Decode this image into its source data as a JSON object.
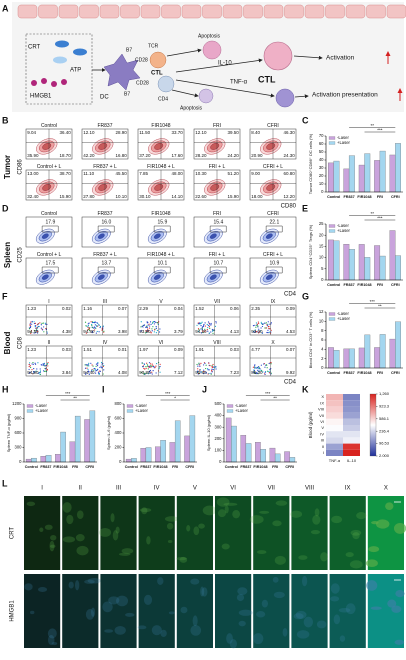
{
  "panel_labels": [
    "A",
    "B",
    "C",
    "D",
    "E",
    "F",
    "G",
    "H",
    "I",
    "J",
    "K",
    "L"
  ],
  "schematic": {
    "texts": [
      "CRT",
      "ATP",
      "HMGB1",
      "DC",
      "B7",
      "TCR",
      "CD28",
      "CTL",
      "CD28",
      "B7",
      "CD4",
      "Apoptosis",
      "IL-10",
      "TNF-α",
      "Apoptosis",
      "CTL",
      "Activation",
      "Activation presentation"
    ]
  },
  "tumor_flow": {
    "side": "Tumor",
    "y_axis": "CD86",
    "x_axis": "CD80",
    "plots": [
      {
        "name": "Control",
        "quadrants": [
          "9.04",
          "36.40",
          "35.90",
          "18.70"
        ]
      },
      {
        "name": "FR837",
        "quadrants": [
          "12.10",
          "28.90",
          "42.20",
          "16.80"
        ]
      },
      {
        "name": "FIR1048",
        "quadrants": [
          "11.50",
          "33.70",
          "37.20",
          "17.60"
        ]
      },
      {
        "name": "FRI",
        "quadrants": [
          "12.10",
          "39.50",
          "28.20",
          "24.20"
        ]
      },
      {
        "name": "CFRI",
        "quadrants": [
          "8.40",
          "46.30",
          "20.90",
          "24.30"
        ]
      },
      {
        "name": "Control + L",
        "quadrants": [
          "13.00",
          "38.70",
          "32.40",
          "15.90"
        ]
      },
      {
        "name": "FR837 + L",
        "quadrants": [
          "11.10",
          "45.50",
          "27.80",
          "10.10"
        ]
      },
      {
        "name": "FIR1048 + L",
        "quadrants": [
          "7.85",
          "48.00",
          "30.10",
          "14.10"
        ]
      },
      {
        "name": "FRI + L",
        "quadrants": [
          "10.30",
          "51.20",
          "22.60",
          "15.90"
        ]
      },
      {
        "name": "CFRI + L",
        "quadrants": [
          "9.00",
          "60.80",
          "18.00",
          "12.20"
        ]
      }
    ]
  },
  "spleen_flow": {
    "side": "Spleen",
    "y_axis": "CD25",
    "x_axis": "CD4",
    "plots": [
      {
        "name": "Control",
        "value": "17.9"
      },
      {
        "name": "FR837",
        "value": "16.0"
      },
      {
        "name": "FIR1048",
        "value": "15.9"
      },
      {
        "name": "FRI",
        "value": "15.4"
      },
      {
        "name": "CFRI",
        "value": "22.1"
      },
      {
        "name": "Control + L",
        "value": "17.5"
      },
      {
        "name": "FR837 + L",
        "value": "13.7"
      },
      {
        "name": "FIR1048 + L",
        "value": "10.1"
      },
      {
        "name": "FRI + L",
        "value": "10.7"
      },
      {
        "name": "CFRI + L",
        "value": "10.9"
      }
    ]
  },
  "blood_flow": {
    "side": "Blood",
    "y_axis": "CD8",
    "x_axis": "CD4",
    "plots": [
      {
        "name": "I",
        "quadrants": [
          "1.23",
          "0.02",
          "94.30",
          "4.38"
        ]
      },
      {
        "name": "III",
        "quadrants": [
          "1.16",
          "0.07",
          "94.80",
          "3.98"
        ]
      },
      {
        "name": "V",
        "quadrants": [
          "2.29",
          "0.04",
          "93.90",
          "3.79"
        ]
      },
      {
        "name": "VII",
        "quadrants": [
          "1.52",
          "0.06",
          "94.30",
          "4.13"
        ]
      },
      {
        "name": "IX",
        "quadrants": [
          "2.35",
          "0.09",
          "93.00",
          "4.53"
        ]
      },
      {
        "name": "II",
        "quadrants": [
          "1.23",
          "0.03",
          "94.90",
          "3.84"
        ]
      },
      {
        "name": "IV",
        "quadrants": [
          "1.51",
          "0.01",
          "94.40",
          "4.08"
        ]
      },
      {
        "name": "VI",
        "quadrants": [
          "1.97",
          "0.09",
          "90.80",
          "7.12"
        ]
      },
      {
        "name": "VIII",
        "quadrants": [
          "1.91",
          "0.03",
          "90.80",
          "7.23"
        ]
      },
      {
        "name": "X",
        "quadrants": [
          "4.77",
          "0.07",
          "85.30",
          "9.92"
        ]
      }
    ]
  },
  "chart_data": [
    {
      "type": "bar",
      "ylabel": "Tumor CD80⁺CD86⁺ DC cells (%)",
      "categories": [
        "Control",
        "FR837",
        "FIR1048",
        "FRI",
        "CFRI"
      ],
      "series": [
        {
          "name": "-Laser",
          "color": "#c9a3dc",
          "values": [
            36.4,
            28.9,
            33.7,
            39.5,
            46.3
          ]
        },
        {
          "name": "+Laser",
          "color": "#a3d6ef",
          "values": [
            38.7,
            45.5,
            48.0,
            51.2,
            60.8
          ]
        }
      ],
      "ylim": [
        0,
        70
      ],
      "yticks": [
        0,
        10,
        20,
        30,
        40,
        50,
        60,
        70
      ],
      "significance": [
        "**",
        "***"
      ]
    },
    {
      "type": "bar",
      "ylabel": "Spleen CD4⁺CD25⁺ Tregs (%)",
      "categories": [
        "Control",
        "FR837",
        "FIR1048",
        "FRI",
        "CFRI"
      ],
      "series": [
        {
          "name": "-Laser",
          "color": "#c9a3dc",
          "values": [
            17.9,
            16.0,
            15.9,
            15.4,
            22.1
          ]
        },
        {
          "name": "+Laser",
          "color": "#a3d6ef",
          "values": [
            17.5,
            13.7,
            10.1,
            10.7,
            10.9
          ]
        }
      ],
      "ylim": [
        0,
        25
      ],
      "yticks": [
        0,
        5,
        10,
        15,
        20,
        25
      ],
      "significance": [
        "**",
        "***"
      ]
    },
    {
      "type": "bar",
      "ylabel": "Blood CD4⁺ in CD3⁺ T cells (%)",
      "categories": [
        "Control",
        "FR837",
        "FIR1048",
        "FRI",
        "CFRI"
      ],
      "series": [
        {
          "name": "-Laser",
          "color": "#c9a3dc",
          "values": [
            4.4,
            4.1,
            4.3,
            4.4,
            6.2
          ]
        },
        {
          "name": "+Laser",
          "color": "#a3d6ef",
          "values": [
            3.8,
            4.1,
            7.1,
            7.2,
            9.9
          ]
        }
      ],
      "ylim": [
        0,
        12
      ],
      "yticks": [
        0,
        2,
        4,
        6,
        8,
        10,
        12
      ],
      "significance": [
        "***",
        "**"
      ]
    },
    {
      "type": "bar",
      "ylabel": "Spleen TNF-α (pg/ml)",
      "categories": [
        "Control",
        "FR837",
        "FIR1048",
        "FRI",
        "CFRI"
      ],
      "series": [
        {
          "name": "-Laser",
          "color": "#c9a3dc",
          "values": [
            60,
            120,
            160,
            420,
            880
          ]
        },
        {
          "name": "+Laser",
          "color": "#a3d6ef",
          "values": [
            80,
            140,
            620,
            950,
            1060
          ]
        }
      ],
      "ylim": [
        0,
        1200
      ],
      "yticks": [
        0,
        300,
        600,
        900,
        1200
      ],
      "significance": [
        "***",
        "**"
      ]
    },
    {
      "type": "bar",
      "ylabel": "Spleen IL-6 (pg/ml)",
      "categories": [
        "Control",
        "FR837",
        "FIR1048",
        "FRI",
        "CFRI"
      ],
      "series": [
        {
          "name": "-Laser",
          "color": "#c9a3dc",
          "values": [
            40,
            190,
            210,
            270,
            360
          ]
        },
        {
          "name": "+Laser",
          "color": "#a3d6ef",
          "values": [
            50,
            200,
            300,
            570,
            640
          ]
        }
      ],
      "ylim": [
        0,
        800
      ],
      "yticks": [
        0,
        200,
        400,
        600,
        800
      ],
      "significance": [
        "***",
        "*"
      ]
    },
    {
      "type": "bar",
      "ylabel": "Spleen IL-10 (pg/ml)",
      "categories": [
        "Control",
        "FR837",
        "FIR1048",
        "FRI",
        "CFRI"
      ],
      "series": [
        {
          "name": "-Laser",
          "color": "#c9a3dc",
          "values": [
            380,
            230,
            170,
            120,
            90
          ]
        },
        {
          "name": "+Laser",
          "color": "#a3d6ef",
          "values": [
            310,
            160,
            110,
            70,
            40
          ]
        }
      ],
      "ylim": [
        0,
        500
      ],
      "yticks": [
        0,
        100,
        200,
        300,
        400,
        500
      ],
      "significance": [
        "***",
        "**"
      ]
    },
    {
      "type": "heatmap",
      "ylabel": "Blood (pg/ml)",
      "x": [
        "TNF-α",
        "IL-10"
      ],
      "y": [
        "X",
        "IX",
        "VIII",
        "VII",
        "VI",
        "V",
        "IV",
        "III",
        "II",
        "I"
      ],
      "values": [
        [
          700,
          100
        ],
        [
          650,
          120
        ],
        [
          600,
          130
        ],
        [
          550,
          150
        ],
        [
          450,
          200
        ],
        [
          400,
          220
        ],
        [
          300,
          300
        ],
        [
          250,
          350
        ],
        [
          150,
          1200
        ],
        [
          100,
          1260
        ]
      ],
      "colors": [
        "#1f2f9a",
        "#ffffff",
        "#d8231f"
      ],
      "colorbar_ticks": [
        {
          "value": 2,
          "label": "2.000"
        },
        96.53,
        236.4,
        586.1,
        923.3,
        {
          "value": 1260,
          "label": "1,260"
        }
      ]
    }
  ],
  "images": {
    "rows": [
      "CRT",
      "HMGB1"
    ],
    "columns": [
      "I",
      "II",
      "III",
      "IV",
      "V",
      "VI",
      "VII",
      "VIII",
      "IX",
      "X"
    ]
  }
}
